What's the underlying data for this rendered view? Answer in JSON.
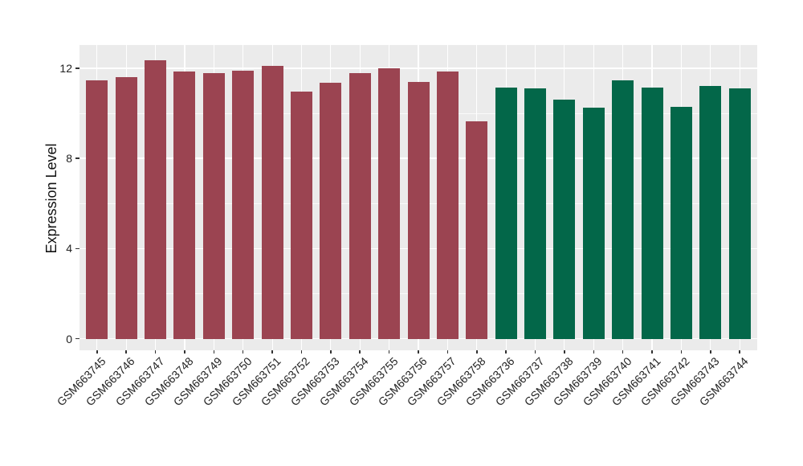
{
  "figure": {
    "background": "#FFFFFF"
  },
  "chart_data": {
    "type": "bar",
    "title": "",
    "xlabel": "",
    "ylabel": "Expression Level",
    "ylim": [
      0,
      13
    ],
    "yticks_major": [
      0,
      4,
      8,
      12
    ],
    "yticks_minor": [
      2,
      6,
      10
    ],
    "grid": "on",
    "legend": "none",
    "panel_background": "#EBEBEB",
    "gridline_color": "#FFFFFF",
    "tick_color": "#333333",
    "group_colors": {
      "group-red": "#9B4451",
      "group-green": "#036749"
    },
    "bars": [
      {
        "label": "GSM663745",
        "value": 11.45,
        "group": "group-red"
      },
      {
        "label": "GSM663746",
        "value": 11.6,
        "group": "group-red"
      },
      {
        "label": "GSM663747",
        "value": 12.35,
        "group": "group-red"
      },
      {
        "label": "GSM663748",
        "value": 11.85,
        "group": "group-red"
      },
      {
        "label": "GSM663749",
        "value": 11.8,
        "group": "group-red"
      },
      {
        "label": "GSM663750",
        "value": 11.9,
        "group": "group-red"
      },
      {
        "label": "GSM663751",
        "value": 12.1,
        "group": "group-red"
      },
      {
        "label": "GSM663752",
        "value": 10.95,
        "group": "group-red"
      },
      {
        "label": "GSM663753",
        "value": 11.35,
        "group": "group-red"
      },
      {
        "label": "GSM663754",
        "value": 11.8,
        "group": "group-red"
      },
      {
        "label": "GSM663755",
        "value": 12.0,
        "group": "group-red"
      },
      {
        "label": "GSM663756",
        "value": 11.4,
        "group": "group-red"
      },
      {
        "label": "GSM663757",
        "value": 11.85,
        "group": "group-red"
      },
      {
        "label": "GSM663758",
        "value": 9.65,
        "group": "group-red"
      },
      {
        "label": "GSM663736",
        "value": 11.15,
        "group": "group-green"
      },
      {
        "label": "GSM663737",
        "value": 11.1,
        "group": "group-green"
      },
      {
        "label": "GSM663738",
        "value": 10.6,
        "group": "group-green"
      },
      {
        "label": "GSM663739",
        "value": 10.25,
        "group": "group-green"
      },
      {
        "label": "GSM663740",
        "value": 11.45,
        "group": "group-green"
      },
      {
        "label": "GSM663741",
        "value": 11.15,
        "group": "group-green"
      },
      {
        "label": "GSM663742",
        "value": 10.3,
        "group": "group-green"
      },
      {
        "label": "GSM663743",
        "value": 11.2,
        "group": "group-green"
      },
      {
        "label": "GSM663744",
        "value": 11.1,
        "group": "group-green"
      }
    ]
  }
}
